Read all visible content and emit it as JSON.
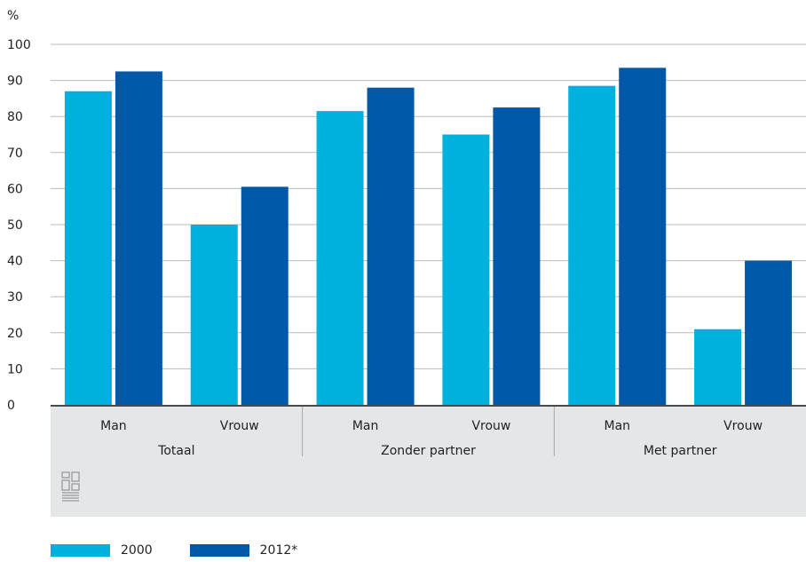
{
  "chart_data": {
    "type": "bar",
    "ylabel": "%",
    "ylim": [
      0,
      100
    ],
    "yticks": [
      0,
      10,
      20,
      30,
      40,
      50,
      60,
      70,
      80,
      90,
      100
    ],
    "categories": [
      "Man",
      "Vrouw",
      "Man",
      "Vrouw",
      "Man",
      "Vrouw"
    ],
    "groups": [
      {
        "label": "Totaal",
        "categories": [
          "Man",
          "Vrouw"
        ]
      },
      {
        "label": "Zonder partner",
        "categories": [
          "Man",
          "Vrouw"
        ]
      },
      {
        "label": "Met partner",
        "categories": [
          "Man",
          "Vrouw"
        ]
      }
    ],
    "series": [
      {
        "name": "2000",
        "color": "#00b1dd",
        "values": [
          87,
          50,
          81.5,
          75,
          88.5,
          21
        ]
      },
      {
        "name": "2012*",
        "color": "#0058a8",
        "values": [
          92.5,
          60.5,
          88,
          82.5,
          93.5,
          40
        ]
      }
    ],
    "grid": true,
    "legend_position": "bottom-left",
    "logo_icon": "cbs-logo-icon"
  }
}
